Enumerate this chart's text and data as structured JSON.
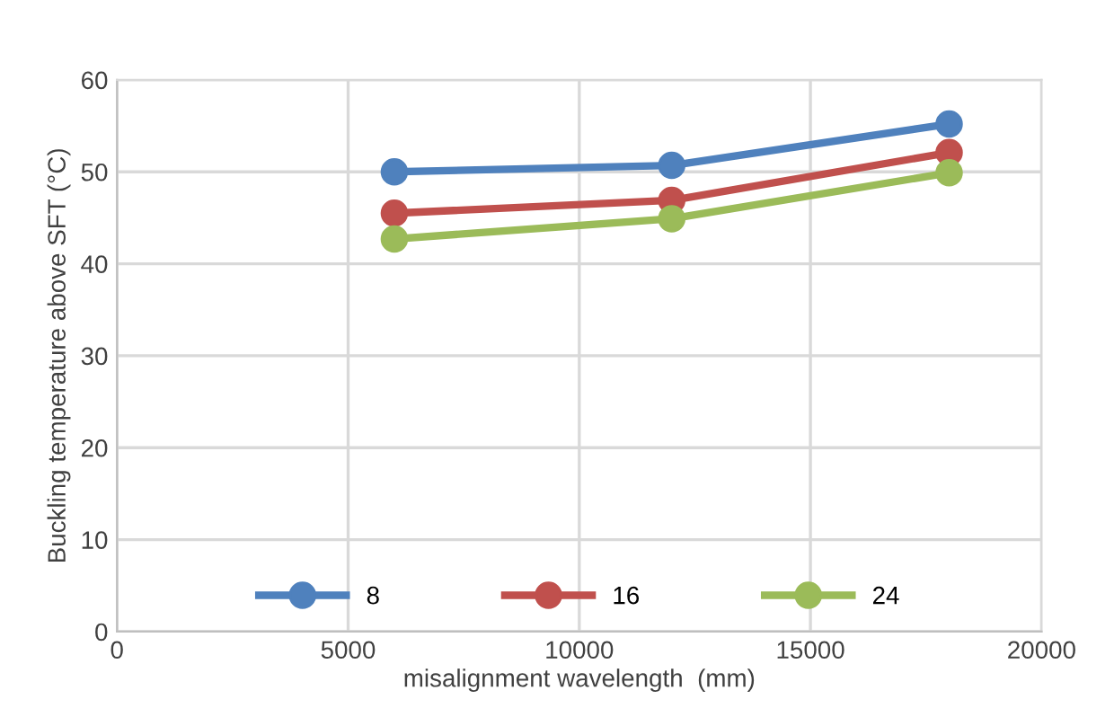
{
  "chart_data": {
    "type": "line",
    "xlabel": "misalignment wavelength  (mm)",
    "ylabel": "Buckling temperature above SFT (°C)",
    "x": [
      6000,
      12000,
      18000
    ],
    "series": [
      {
        "name": "8",
        "color": "#4f81bd",
        "values": [
          50,
          50.7,
          55.2
        ]
      },
      {
        "name": "16",
        "color": "#c0504d",
        "values": [
          45.5,
          46.9,
          52.1
        ]
      },
      {
        "name": "24",
        "color": "#9bbb59",
        "values": [
          42.7,
          44.9,
          49.9
        ]
      }
    ],
    "xlim": [
      0,
      20000
    ],
    "xticks": [
      0,
      5000,
      10000,
      15000,
      20000
    ],
    "ylim": [
      0,
      60
    ],
    "yticks": [
      0,
      10,
      20,
      30,
      40,
      50,
      60
    ],
    "grid": true,
    "legend": "bottom",
    "marker": "circle",
    "line_style": "solid"
  }
}
